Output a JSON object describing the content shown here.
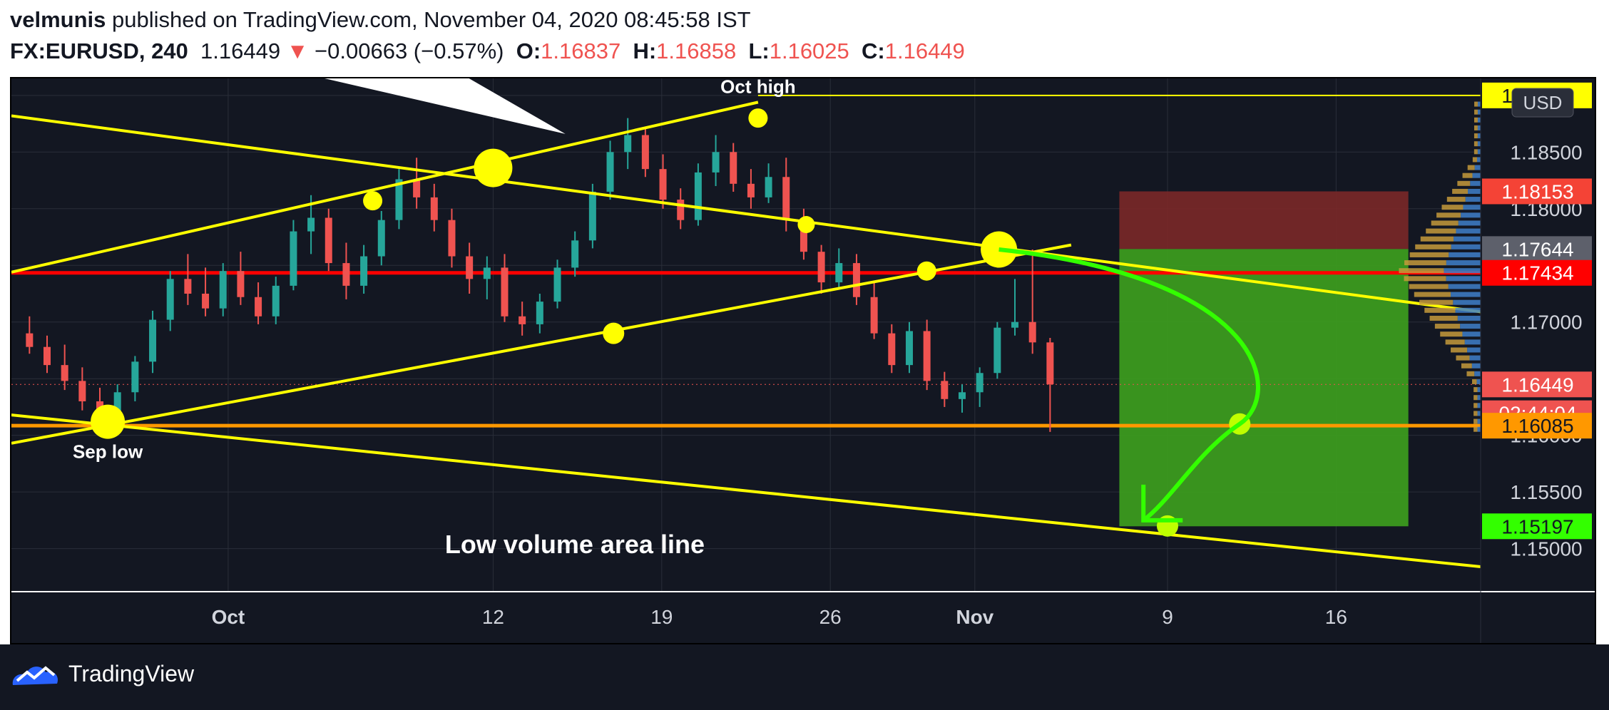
{
  "header": {
    "author": "velmunis",
    "published_text": "published on TradingView.com, November 04, 2020 08:45:58 IST",
    "symbol": "FX:EURUSD, 240",
    "last": "1.16449",
    "change_arrow": "▼",
    "change": "−0.00663 (−0.57%)",
    "o_label": "O:",
    "o_value": "1.16837",
    "h_label": "H:",
    "h_value": "1.16858",
    "l_label": "L:",
    "l_value": "1.16025",
    "c_label": "C:",
    "c_value": "1.16449"
  },
  "footer": {
    "brand": "TradingView"
  },
  "colors": {
    "background": "#131722",
    "up_candle": "#26a69a",
    "down_candle": "#ef5350",
    "trendline": "#ffff00",
    "horizontal_red": "#ff0000",
    "horizontal_orange": "#ff9800",
    "target_arrow": "#33ff00",
    "stop_zone": "#7b2828",
    "profit_zone": "#3b9a1f"
  },
  "chart_data": {
    "type": "candlestick",
    "title": "",
    "currency_label": "USD",
    "x_labels": [
      "Oct",
      "12",
      "19",
      "26",
      "Nov",
      "9",
      "16"
    ],
    "x_label_dates": [
      "2020-10-01",
      "2020-10-12",
      "2020-10-19",
      "2020-10-26",
      "2020-11-01",
      "2020-11-09",
      "2020-11-16"
    ],
    "x_range": [
      "2020-09-22",
      "2020-11-22"
    ],
    "y_ticks": [
      1.15,
      1.155,
      1.16,
      1.165,
      1.17,
      1.175,
      1.18,
      1.185,
      1.19
    ],
    "y_tick_labels": [
      "1.15000",
      "1.15500",
      "1.16000",
      "1.16500",
      "1.17000",
      "1.17500",
      "1.18000",
      "1.18500",
      "1.19000"
    ],
    "ylim": [
      1.1462,
      1.1915
    ],
    "grid": true,
    "price_tags": [
      {
        "label": "1.19000",
        "value": 1.19,
        "bg": "#ffff00",
        "fg": "#131722"
      },
      {
        "label": "1.18153",
        "value": 1.18153,
        "bg": "#f44336",
        "fg": "#ffffff"
      },
      {
        "label": "1.17644",
        "value": 1.17644,
        "bg": "#5d606b",
        "fg": "#ffffff"
      },
      {
        "label": "1.17434",
        "value": 1.17434,
        "bg": "#ff0000",
        "fg": "#ffffff"
      },
      {
        "label": "1.16449",
        "value": 1.16449,
        "bg": "#ef5350",
        "fg": "#ffffff"
      },
      {
        "label": "02:44:04",
        "value": 1.16195,
        "bg": "#ef5350",
        "fg": "#ffffff"
      },
      {
        "label": "1.16085",
        "value": 1.16085,
        "bg": "#ff9800",
        "fg": "#131722"
      },
      {
        "label": "1.15197",
        "value": 1.15197,
        "bg": "#33ff00",
        "fg": "#131722"
      }
    ],
    "candles": [
      {
        "t": 0,
        "o": 1.169,
        "h": 1.1705,
        "l": 1.1672,
        "c": 1.1678
      },
      {
        "t": 1,
        "o": 1.1678,
        "h": 1.1688,
        "l": 1.1655,
        "c": 1.1662
      },
      {
        "t": 2,
        "o": 1.1662,
        "h": 1.168,
        "l": 1.164,
        "c": 1.1648
      },
      {
        "t": 3,
        "o": 1.1648,
        "h": 1.166,
        "l": 1.1622,
        "c": 1.163
      },
      {
        "t": 4,
        "o": 1.163,
        "h": 1.1642,
        "l": 1.1612,
        "c": 1.162
      },
      {
        "t": 5,
        "o": 1.162,
        "h": 1.1645,
        "l": 1.161,
        "c": 1.1638
      },
      {
        "t": 6,
        "o": 1.1638,
        "h": 1.167,
        "l": 1.163,
        "c": 1.1665
      },
      {
        "t": 7,
        "o": 1.1665,
        "h": 1.171,
        "l": 1.1655,
        "c": 1.1702
      },
      {
        "t": 8,
        "o": 1.1702,
        "h": 1.1745,
        "l": 1.1692,
        "c": 1.1738
      },
      {
        "t": 9,
        "o": 1.1738,
        "h": 1.176,
        "l": 1.1715,
        "c": 1.1725
      },
      {
        "t": 10,
        "o": 1.1725,
        "h": 1.1748,
        "l": 1.1705,
        "c": 1.1712
      },
      {
        "t": 11,
        "o": 1.1712,
        "h": 1.1752,
        "l": 1.1705,
        "c": 1.1745
      },
      {
        "t": 12,
        "o": 1.1745,
        "h": 1.1762,
        "l": 1.1715,
        "c": 1.1722
      },
      {
        "t": 13,
        "o": 1.1722,
        "h": 1.1735,
        "l": 1.1698,
        "c": 1.1705
      },
      {
        "t": 14,
        "o": 1.1705,
        "h": 1.174,
        "l": 1.1698,
        "c": 1.1732
      },
      {
        "t": 15,
        "o": 1.1732,
        "h": 1.179,
        "l": 1.1728,
        "c": 1.178
      },
      {
        "t": 16,
        "o": 1.178,
        "h": 1.1812,
        "l": 1.176,
        "c": 1.1792
      },
      {
        "t": 17,
        "o": 1.1792,
        "h": 1.18,
        "l": 1.1745,
        "c": 1.1752
      },
      {
        "t": 18,
        "o": 1.1752,
        "h": 1.177,
        "l": 1.172,
        "c": 1.1732
      },
      {
        "t": 19,
        "o": 1.1732,
        "h": 1.1768,
        "l": 1.1725,
        "c": 1.1758
      },
      {
        "t": 20,
        "o": 1.1758,
        "h": 1.1798,
        "l": 1.175,
        "c": 1.179
      },
      {
        "t": 21,
        "o": 1.179,
        "h": 1.1835,
        "l": 1.1782,
        "c": 1.1826
      },
      {
        "t": 22,
        "o": 1.1826,
        "h": 1.1845,
        "l": 1.18,
        "c": 1.181
      },
      {
        "t": 23,
        "o": 1.181,
        "h": 1.1822,
        "l": 1.178,
        "c": 1.179
      },
      {
        "t": 24,
        "o": 1.179,
        "h": 1.18,
        "l": 1.1748,
        "c": 1.1758
      },
      {
        "t": 25,
        "o": 1.1758,
        "h": 1.177,
        "l": 1.1725,
        "c": 1.1738
      },
      {
        "t": 26,
        "o": 1.1738,
        "h": 1.1758,
        "l": 1.172,
        "c": 1.1748
      },
      {
        "t": 27,
        "o": 1.1748,
        "h": 1.176,
        "l": 1.17,
        "c": 1.1705
      },
      {
        "t": 28,
        "o": 1.1705,
        "h": 1.1718,
        "l": 1.1688,
        "c": 1.1698
      },
      {
        "t": 29,
        "o": 1.1698,
        "h": 1.1725,
        "l": 1.169,
        "c": 1.1718
      },
      {
        "t": 30,
        "o": 1.1718,
        "h": 1.1755,
        "l": 1.1712,
        "c": 1.1748
      },
      {
        "t": 31,
        "o": 1.1748,
        "h": 1.178,
        "l": 1.174,
        "c": 1.1772
      },
      {
        "t": 32,
        "o": 1.1772,
        "h": 1.1822,
        "l": 1.1765,
        "c": 1.1815
      },
      {
        "t": 33,
        "o": 1.1815,
        "h": 1.186,
        "l": 1.1808,
        "c": 1.185
      },
      {
        "t": 34,
        "o": 1.185,
        "h": 1.188,
        "l": 1.1835,
        "c": 1.1865
      },
      {
        "t": 35,
        "o": 1.1865,
        "h": 1.1872,
        "l": 1.1828,
        "c": 1.1835
      },
      {
        "t": 36,
        "o": 1.1835,
        "h": 1.1848,
        "l": 1.18,
        "c": 1.1808
      },
      {
        "t": 37,
        "o": 1.1808,
        "h": 1.1818,
        "l": 1.1782,
        "c": 1.179
      },
      {
        "t": 38,
        "o": 1.179,
        "h": 1.184,
        "l": 1.1785,
        "c": 1.1832
      },
      {
        "t": 39,
        "o": 1.1832,
        "h": 1.1865,
        "l": 1.182,
        "c": 1.185
      },
      {
        "t": 40,
        "o": 1.185,
        "h": 1.1858,
        "l": 1.1815,
        "c": 1.1822
      },
      {
        "t": 41,
        "o": 1.1822,
        "h": 1.1835,
        "l": 1.18,
        "c": 1.181
      },
      {
        "t": 42,
        "o": 1.181,
        "h": 1.184,
        "l": 1.1805,
        "c": 1.1828
      },
      {
        "t": 43,
        "o": 1.1828,
        "h": 1.1845,
        "l": 1.178,
        "c": 1.179
      },
      {
        "t": 44,
        "o": 1.179,
        "h": 1.18,
        "l": 1.1755,
        "c": 1.1762
      },
      {
        "t": 45,
        "o": 1.1762,
        "h": 1.1768,
        "l": 1.1725,
        "c": 1.1735
      },
      {
        "t": 46,
        "o": 1.1735,
        "h": 1.1765,
        "l": 1.173,
        "c": 1.1752
      },
      {
        "t": 47,
        "o": 1.1752,
        "h": 1.176,
        "l": 1.1715,
        "c": 1.1722
      },
      {
        "t": 48,
        "o": 1.1722,
        "h": 1.1735,
        "l": 1.1685,
        "c": 1.169
      },
      {
        "t": 49,
        "o": 1.169,
        "h": 1.1698,
        "l": 1.1655,
        "c": 1.1662
      },
      {
        "t": 50,
        "o": 1.1662,
        "h": 1.17,
        "l": 1.1655,
        "c": 1.1692
      },
      {
        "t": 51,
        "o": 1.1692,
        "h": 1.1702,
        "l": 1.164,
        "c": 1.1648
      },
      {
        "t": 52,
        "o": 1.1648,
        "h": 1.1656,
        "l": 1.1625,
        "c": 1.1632
      },
      {
        "t": 53,
        "o": 1.1632,
        "h": 1.1645,
        "l": 1.162,
        "c": 1.1638
      },
      {
        "t": 54,
        "o": 1.1638,
        "h": 1.166,
        "l": 1.1625,
        "c": 1.1655
      },
      {
        "t": 55,
        "o": 1.1655,
        "h": 1.17,
        "l": 1.165,
        "c": 1.1695
      },
      {
        "t": 56,
        "o": 1.1695,
        "h": 1.1738,
        "l": 1.1688,
        "c": 1.17
      },
      {
        "t": 57,
        "o": 1.17,
        "h": 1.1764,
        "l": 1.1672,
        "c": 1.1682
      },
      {
        "t": 58,
        "o": 1.1682,
        "h": 1.1686,
        "l": 1.1603,
        "c": 1.1645
      }
    ],
    "lines": [
      {
        "name": "upper-channel",
        "color": "#ffff00",
        "points": [
          [
            "2020-09-22",
            1.1744
          ],
          [
            "2020-10-23",
            1.1894
          ]
        ]
      },
      {
        "name": "descending-resistance",
        "color": "#ffff00",
        "points": [
          [
            "2020-09-22",
            1.1882
          ],
          [
            "2020-11-22",
            1.1709
          ]
        ]
      },
      {
        "name": "rising-support",
        "color": "#ffff00",
        "points": [
          [
            "2020-09-22",
            1.1593
          ],
          [
            "2020-11-05",
            1.1768
          ]
        ]
      },
      {
        "name": "lower-channel",
        "color": "#ffff00",
        "points": [
          [
            "2020-09-22",
            1.1618
          ],
          [
            "2020-11-22",
            1.1484
          ]
        ]
      },
      {
        "name": "red-horizontal",
        "color": "#ff0000",
        "points": [
          [
            "2020-09-22",
            1.17434
          ],
          [
            "2020-11-22",
            1.17434
          ]
        ]
      },
      {
        "name": "orange-horizontal",
        "color": "#ff9800",
        "points": [
          [
            "2020-09-22",
            1.16085
          ],
          [
            "2020-11-22",
            1.16085
          ]
        ]
      },
      {
        "name": "upper-horizontal",
        "color": "#ffff00",
        "points": [
          [
            "2020-10-23",
            1.19
          ],
          [
            "2020-11-22",
            1.19
          ]
        ]
      }
    ],
    "markers": [
      {
        "date": "2020-09-26",
        "value": 1.1612,
        "r": 16
      },
      {
        "date": "2020-10-07",
        "value": 1.1807,
        "r": 9
      },
      {
        "date": "2020-10-12",
        "value": 1.1836,
        "r": 18
      },
      {
        "date": "2020-10-17",
        "value": 1.169,
        "r": 10
      },
      {
        "date": "2020-10-23",
        "value": 1.188,
        "r": 9
      },
      {
        "date": "2020-10-25",
        "value": 1.1786,
        "r": 8
      },
      {
        "date": "2020-10-30",
        "value": 1.1745,
        "r": 9
      },
      {
        "date": "2020-11-02",
        "value": 1.1764,
        "r": 17
      },
      {
        "date": "2020-11-09",
        "value": 1.152,
        "r": 10
      },
      {
        "date": "2020-11-12",
        "value": 1.161,
        "r": 10
      }
    ],
    "position": {
      "start": "2020-11-07",
      "end": "2020-11-19",
      "stop": 1.18153,
      "entry": 1.17644,
      "target": 1.15197
    },
    "annotations": [
      {
        "text": "Oct high",
        "date": "2020-10-23",
        "value": 1.1902
      },
      {
        "text": "Sep low",
        "date": "2020-09-26",
        "value": 1.158
      },
      {
        "text": "Low volume area line",
        "date": "2020-10-26",
        "value": 1.1496
      }
    ]
  }
}
